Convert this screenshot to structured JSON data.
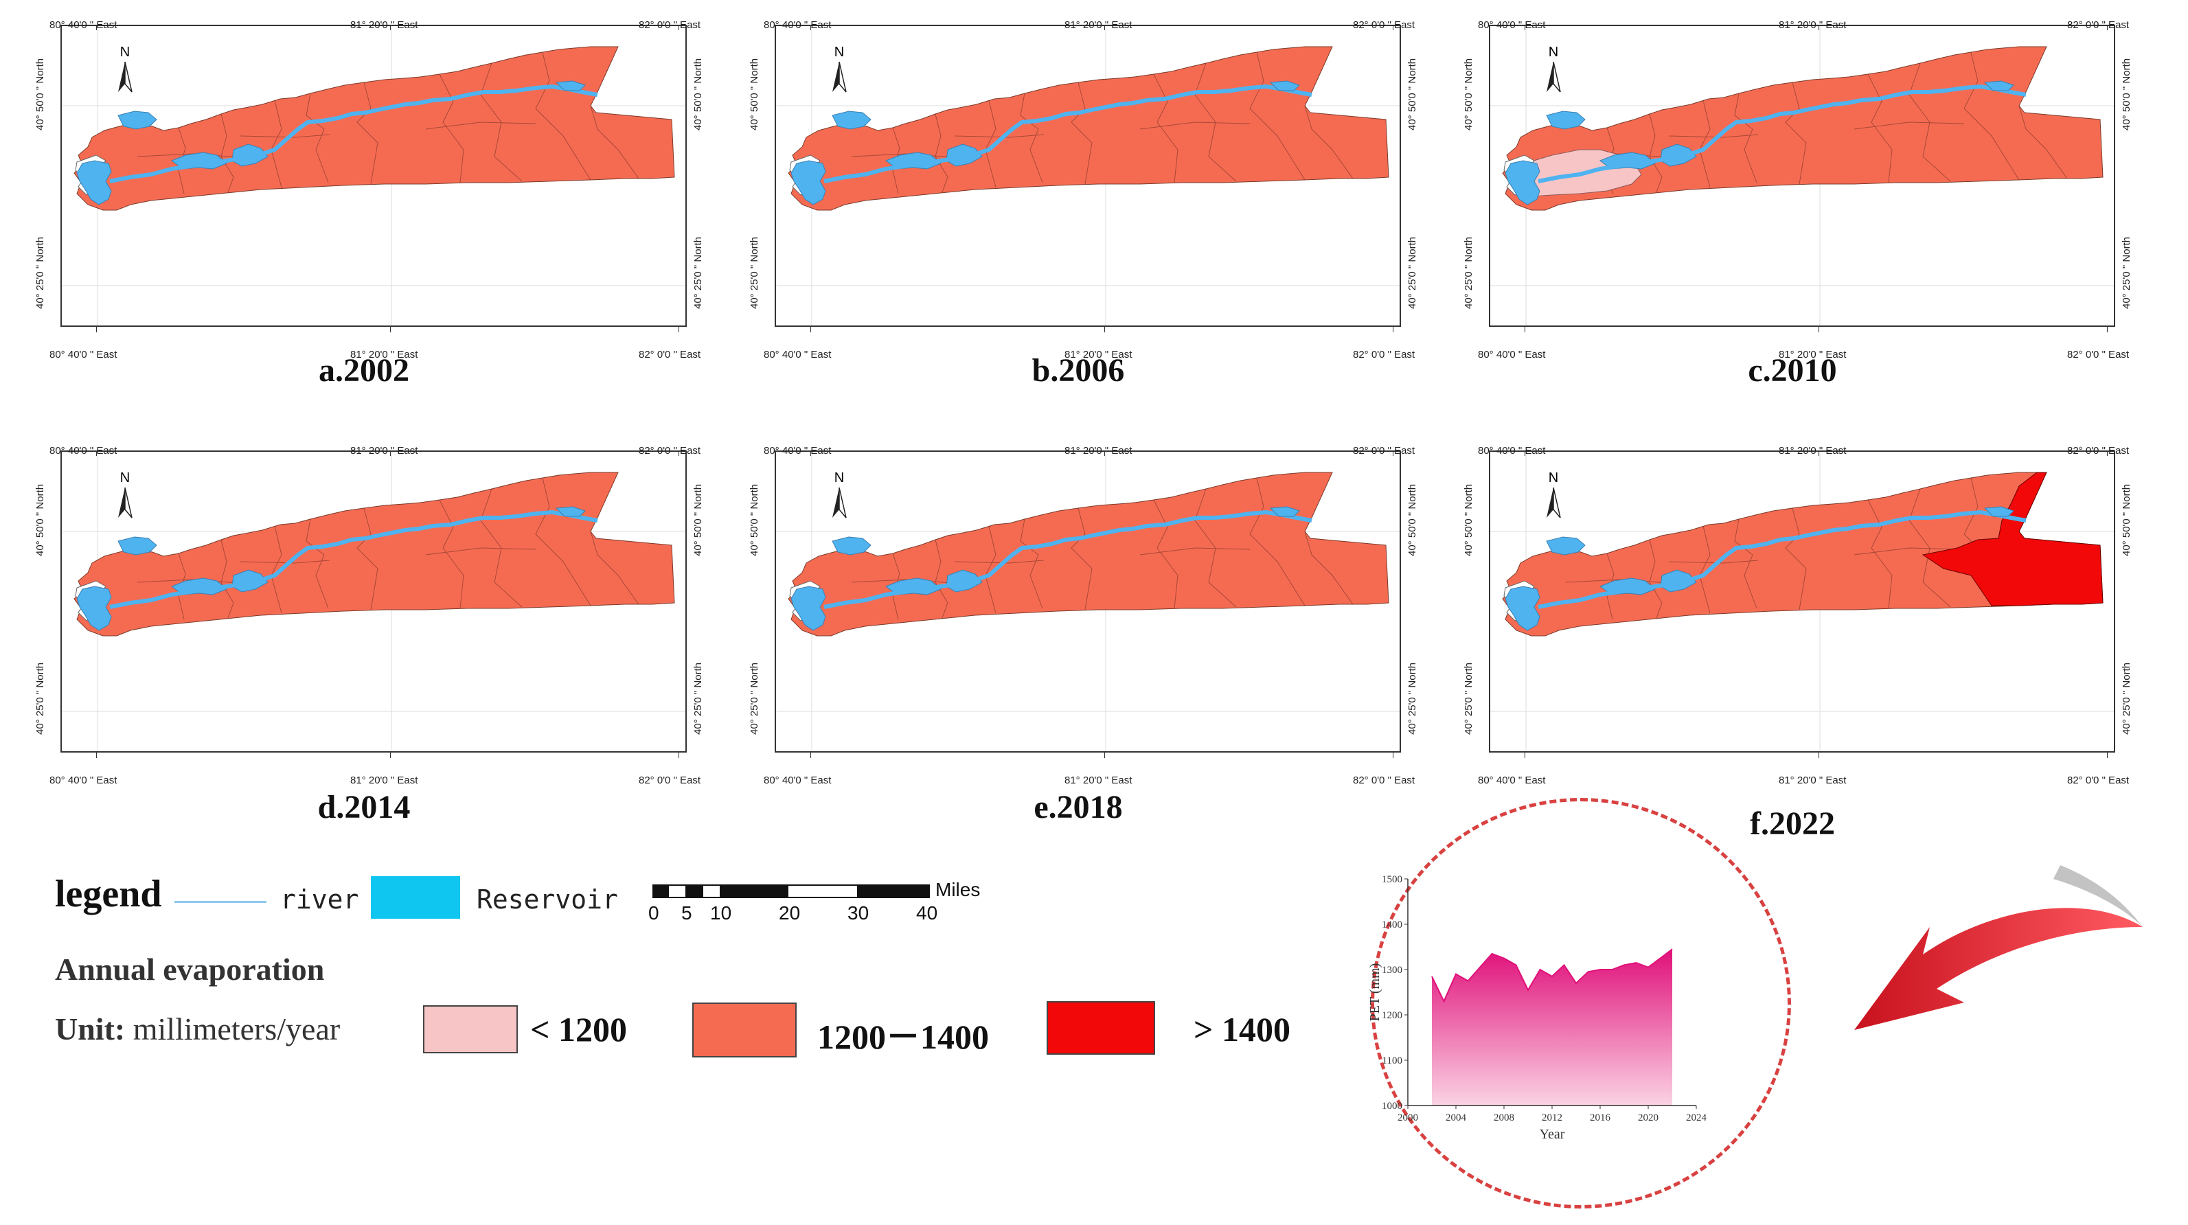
{
  "colors": {
    "river": "#8ec8f0",
    "reservoir": "#4fb3f0",
    "low": "#f7c5c6",
    "mid": "#f56b52",
    "high": "#f20808",
    "lake_border": "#555555",
    "circle": "#d94141",
    "arrow": "#ee2a33",
    "area_top": "#e0107a",
    "area_bottom": "#fbd3e4"
  },
  "map": {
    "lon_top_labels": [
      "80° 40'0 \" East",
      "81° 20'0 \" East",
      "82° 0'0 \" East"
    ],
    "lon_bottom_labels": [
      "80° 40'0 \" East",
      "81° 20'0 \" East",
      "82° 0'0 \" East"
    ],
    "lat_left_labels": [
      "40° 50'0 \" North",
      "40° 25'0 \" North"
    ],
    "lat_right_labels": [
      "40° 50'0 \" North",
      "40° 25'0 \" North"
    ],
    "north_label": "N"
  },
  "panels": [
    {
      "caption": "a.2002",
      "low_region": false,
      "high_region": false
    },
    {
      "caption": "b.2006",
      "low_region": false,
      "high_region": false
    },
    {
      "caption": "c.2010",
      "low_region": true,
      "high_region": false
    },
    {
      "caption": "d.2014",
      "low_region": false,
      "high_region": false
    },
    {
      "caption": "e.2018",
      "low_region": false,
      "high_region": false
    },
    {
      "caption": "f.2022",
      "low_region": false,
      "high_region": true
    }
  ],
  "legend": {
    "title": "legend",
    "river_label": "river",
    "reservoir_label": "Reservoir",
    "scale_unit": "Miles",
    "scale_ticks": [
      "0",
      "5",
      "10",
      "20",
      "30",
      "40"
    ],
    "annual_title": "Annual evaporation",
    "unit_label": "Unit:",
    "unit_value": "millimeters/year",
    "classes": [
      {
        "label": "< 1200",
        "color": "#f7c5c6"
      },
      {
        "label": "1200－1400",
        "color": "#f56b52"
      },
      {
        "label": "> 1400",
        "color": "#f20808"
      }
    ]
  },
  "chart_data": {
    "type": "area",
    "xlabel": "Year",
    "ylabel": "PET (mm)",
    "xlim": [
      2000,
      2024
    ],
    "ylim": [
      1000,
      1500
    ],
    "xticks": [
      "2000",
      "2004",
      "2008",
      "2012",
      "2016",
      "2020",
      "2024"
    ],
    "yticks": [
      "1000",
      "1100",
      "1200",
      "1300",
      "1400",
      "1500"
    ],
    "x": [
      2002,
      2003,
      2004,
      2005,
      2006,
      2007,
      2008,
      2009,
      2010,
      2011,
      2012,
      2013,
      2014,
      2015,
      2016,
      2017,
      2018,
      2019,
      2020,
      2021,
      2022
    ],
    "values": [
      1285,
      1230,
      1290,
      1275,
      1305,
      1335,
      1325,
      1310,
      1255,
      1300,
      1285,
      1310,
      1270,
      1295,
      1300,
      1300,
      1310,
      1315,
      1305,
      1325,
      1345
    ]
  }
}
